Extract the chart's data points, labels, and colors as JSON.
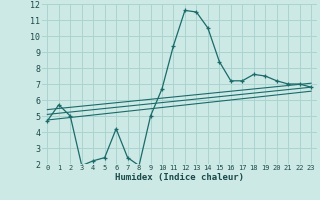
{
  "xlabel": "Humidex (Indice chaleur)",
  "xlim": [
    -0.5,
    23.5
  ],
  "ylim": [
    2,
    12
  ],
  "xticks": [
    0,
    1,
    2,
    3,
    4,
    5,
    6,
    7,
    8,
    9,
    10,
    11,
    12,
    13,
    14,
    15,
    16,
    17,
    18,
    19,
    20,
    21,
    22,
    23
  ],
  "yticks": [
    2,
    3,
    4,
    5,
    6,
    7,
    8,
    9,
    10,
    11,
    12
  ],
  "bg_color": "#cce9e5",
  "line_color": "#1a6b6a",
  "grid_color": "#aad4d0",
  "line1_x": [
    0,
    1,
    2,
    3,
    4,
    5,
    6,
    7,
    8,
    9,
    10,
    11,
    12,
    13,
    14,
    15,
    16,
    17,
    18,
    19,
    20,
    21,
    22,
    23
  ],
  "line1_y": [
    4.7,
    5.7,
    5.0,
    1.9,
    2.2,
    2.4,
    4.2,
    2.4,
    1.9,
    5.0,
    6.7,
    9.4,
    11.6,
    11.5,
    10.5,
    8.4,
    7.2,
    7.2,
    7.6,
    7.5,
    7.2,
    7.0,
    7.0,
    6.8
  ],
  "line2_x": [
    0,
    23
  ],
  "line2_y": [
    5.1,
    6.8
  ],
  "line3_x": [
    0,
    23
  ],
  "line3_y": [
    5.4,
    7.05
  ],
  "line4_x": [
    0,
    23
  ],
  "line4_y": [
    4.75,
    6.55
  ],
  "marker": "+"
}
